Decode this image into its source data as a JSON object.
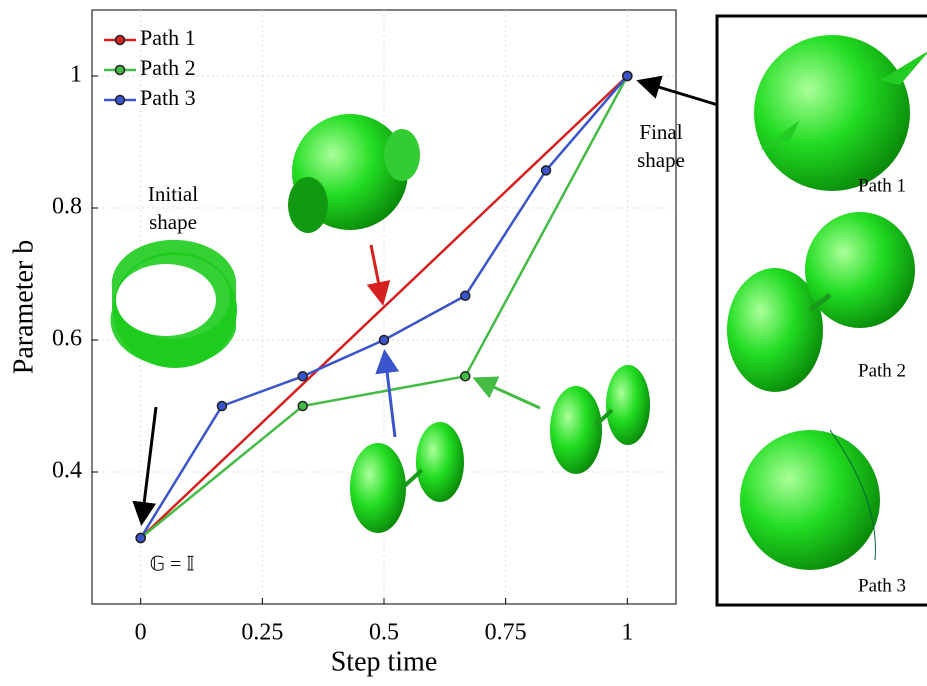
{
  "chart_data": {
    "type": "line",
    "xlabel": "Step time",
    "ylabel": "Parameter b",
    "xlim": [
      -0.1,
      1.1
    ],
    "ylim": [
      0.2,
      1.1
    ],
    "xticks": [
      0,
      0.25,
      0.5,
      0.75,
      1
    ],
    "yticks": [
      0.4,
      0.6,
      0.8,
      1
    ],
    "grid": true,
    "legend": "upper left",
    "series": [
      {
        "name": "Path 1",
        "color": "#d62020",
        "x": [
          0,
          1
        ],
        "values": [
          0.3,
          1
        ]
      },
      {
        "name": "Path 2",
        "color": "#44bb44",
        "x": [
          0,
          0.333,
          0.667,
          1
        ],
        "values": [
          0.3,
          0.5,
          0.545,
          1
        ]
      },
      {
        "name": "Path 3",
        "color": "#3a55cc",
        "x": [
          0,
          0.167,
          0.333,
          0.5,
          0.667,
          0.833,
          1
        ],
        "values": [
          0.3,
          0.5,
          0.545,
          0.6,
          0.667,
          0.857,
          1
        ]
      }
    ],
    "annotations": [
      "Initial shape",
      "Final shape",
      "𝔾 = 𝕀"
    ],
    "panel_labels": [
      "Path 1",
      "Path 2",
      "Path 3"
    ]
  }
}
